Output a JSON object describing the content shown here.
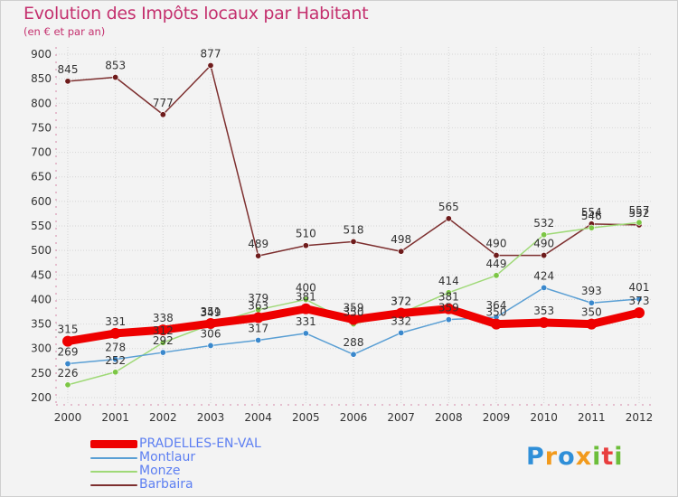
{
  "header": {
    "title": "Evolution des Impôts locaux par Habitant",
    "subtitle": "(en € et par an)"
  },
  "logo": {
    "letters": [
      "P",
      "r",
      "o",
      "x",
      "i",
      "t",
      "i"
    ],
    "colors": [
      "#2f8fd8",
      "#f29a1c",
      "#2f8fd8",
      "#f29a1c",
      "#6cbe3a",
      "#e83e3e",
      "#6cbe3a"
    ]
  },
  "chart_data": {
    "type": "line",
    "title": "Evolution des Impôts locaux par Habitant",
    "subtitle": "(en € et par an)",
    "xlabel": "",
    "ylabel": "",
    "categories": [
      "2000",
      "2001",
      "2002",
      "2003",
      "2004",
      "2005",
      "2006",
      "2007",
      "2008",
      "2009",
      "2010",
      "2011",
      "2012"
    ],
    "ylim": [
      200,
      900
    ],
    "yticks": [
      200,
      250,
      300,
      350,
      400,
      450,
      500,
      550,
      600,
      650,
      700,
      750,
      800,
      850,
      900
    ],
    "grid": true,
    "legend_position": "bottom-left",
    "series": [
      {
        "name": "Barbaira",
        "color": "#7d2f2f",
        "marker": "#6e1b1b",
        "values": [
          845,
          853,
          777,
          877,
          489,
          510,
          518,
          498,
          565,
          490,
          490,
          554,
          552
        ],
        "labels": [
          "845",
          "853",
          "777",
          "877",
          "489",
          "510",
          "518",
          "498",
          "565",
          "490",
          "490",
          "554",
          "552"
        ]
      },
      {
        "name": "Monze",
        "color": "#9fd977",
        "marker": "#7cc645",
        "values": [
          226,
          252,
          312,
          349,
          379,
          400,
          350,
          372,
          414,
          449,
          532,
          546,
          557
        ],
        "labels": [
          "226",
          "252",
          "312",
          "349",
          "379",
          "400",
          "350",
          "372",
          "414",
          "449",
          "532",
          "546",
          "557"
        ]
      },
      {
        "name": "Montlaur",
        "color": "#5a9fd4",
        "marker": "#3a88cc",
        "values": [
          269,
          278,
          292,
          306,
          317,
          331,
          288,
          332,
          359,
          364,
          424,
          393,
          401
        ],
        "labels": [
          "269",
          "278",
          "292",
          "306",
          "317",
          "331",
          "288",
          "332",
          "359",
          "364",
          "424",
          "393",
          "401"
        ]
      },
      {
        "name": "PRADELLES-EN-VAL",
        "color": "#ee0000",
        "marker": "#ee0000",
        "values": [
          315,
          331,
          338,
          351,
          363,
          381,
          359,
          372,
          381,
          350,
          353,
          350,
          373
        ],
        "labels": [
          "315",
          "331",
          "338",
          "351",
          "363",
          "381",
          "359",
          "372",
          "381",
          "350",
          "353",
          "350",
          "373"
        ]
      }
    ],
    "legend": [
      "PRADELLES-EN-VAL",
      "Montlaur",
      "Monze",
      "Barbaira"
    ]
  }
}
